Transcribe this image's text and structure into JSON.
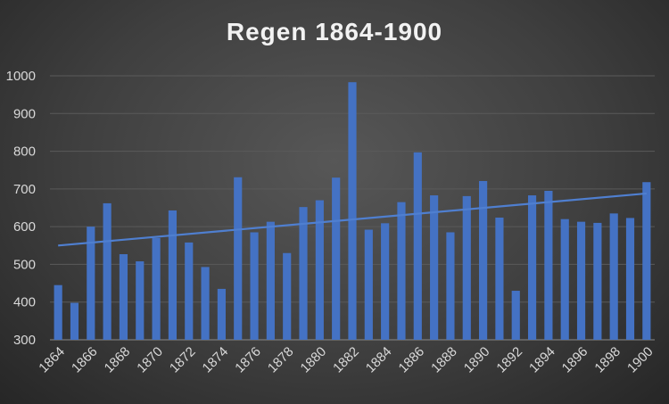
{
  "chart_data": {
    "type": "bar",
    "title": "Regen 1864-1900",
    "xlabel": "",
    "ylabel": "",
    "ylim": [
      300,
      1000
    ],
    "yticks": [
      300,
      400,
      500,
      600,
      700,
      800,
      900,
      1000
    ],
    "grid": true,
    "legend": "none",
    "categories": [
      "1864",
      "1865",
      "1866",
      "1867",
      "1868",
      "1869",
      "1870",
      "1871",
      "1872",
      "1873",
      "1874",
      "1875",
      "1876",
      "1877",
      "1878",
      "1879",
      "1880",
      "1881",
      "1882",
      "1883",
      "1884",
      "1885",
      "1886",
      "1887",
      "1888",
      "1889",
      "1890",
      "1891",
      "1892",
      "1893",
      "1894",
      "1895",
      "1896",
      "1897",
      "1898",
      "1899",
      "1900"
    ],
    "x_tick_labels": [
      "1864",
      "1866",
      "1868",
      "1870",
      "1872",
      "1874",
      "1876",
      "1878",
      "1880",
      "1882",
      "1884",
      "1886",
      "1888",
      "1890",
      "1892",
      "1894",
      "1896",
      "1898",
      "1900"
    ],
    "values": [
      445,
      398,
      600,
      662,
      527,
      508,
      570,
      643,
      558,
      493,
      435,
      731,
      585,
      613,
      530,
      652,
      670,
      730,
      983,
      592,
      609,
      665,
      797,
      683,
      585,
      681,
      721,
      624,
      430,
      683,
      695,
      620,
      613,
      610,
      635,
      623,
      718
    ],
    "trendline": {
      "type": "linear",
      "start": 550,
      "end": 688
    },
    "bar_color": "#4472c4",
    "trend_color": "#4f7fd0"
  }
}
